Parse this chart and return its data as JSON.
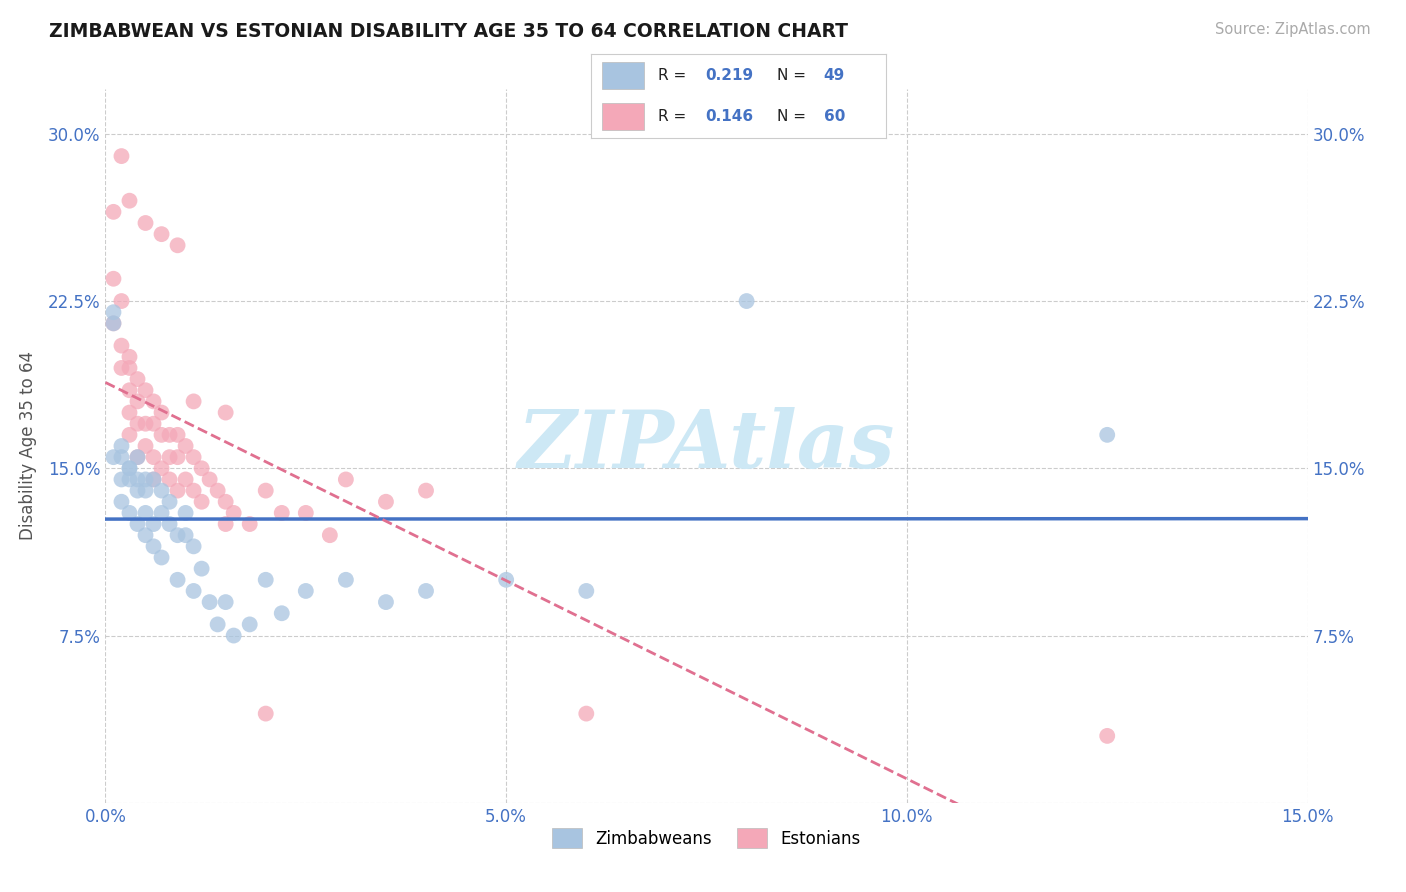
{
  "title": "ZIMBABWEAN VS ESTONIAN DISABILITY AGE 35 TO 64 CORRELATION CHART",
  "source_text": "Source: ZipAtlas.com",
  "xlabel": "",
  "ylabel": "Disability Age 35 to 64",
  "xlim": [
    0.0,
    0.15
  ],
  "ylim": [
    0.0,
    0.32
  ],
  "x_ticks": [
    0.0,
    0.05,
    0.1,
    0.15
  ],
  "x_tick_labels": [
    "0.0%",
    "5.0%",
    "10.0%",
    "15.0%"
  ],
  "y_ticks": [
    0.0,
    0.075,
    0.15,
    0.225,
    0.3
  ],
  "y_tick_labels": [
    "",
    "7.5%",
    "15.0%",
    "22.5%",
    "30.0%"
  ],
  "zim_R": 0.219,
  "zim_N": 49,
  "est_R": 0.146,
  "est_N": 60,
  "zim_color": "#a8c4e0",
  "est_color": "#f4a8b8",
  "zim_line_color": "#4472c4",
  "est_line_color": "#e07090",
  "watermark_color": "#cde8f5",
  "background_color": "#ffffff",
  "grid_color": "#cccccc",
  "zim_x": [
    0.001,
    0.001,
    0.001,
    0.002,
    0.002,
    0.002,
    0.002,
    0.003,
    0.003,
    0.003,
    0.003,
    0.004,
    0.004,
    0.004,
    0.004,
    0.005,
    0.005,
    0.005,
    0.005,
    0.006,
    0.006,
    0.006,
    0.007,
    0.007,
    0.007,
    0.008,
    0.008,
    0.009,
    0.009,
    0.01,
    0.01,
    0.011,
    0.011,
    0.012,
    0.013,
    0.014,
    0.015,
    0.016,
    0.018,
    0.02,
    0.022,
    0.025,
    0.03,
    0.035,
    0.04,
    0.05,
    0.06,
    0.08,
    0.125
  ],
  "zim_y": [
    0.215,
    0.22,
    0.155,
    0.155,
    0.16,
    0.145,
    0.135,
    0.15,
    0.15,
    0.145,
    0.13,
    0.155,
    0.145,
    0.14,
    0.125,
    0.145,
    0.14,
    0.13,
    0.12,
    0.145,
    0.125,
    0.115,
    0.14,
    0.13,
    0.11,
    0.135,
    0.125,
    0.12,
    0.1,
    0.13,
    0.12,
    0.115,
    0.095,
    0.105,
    0.09,
    0.08,
    0.09,
    0.075,
    0.08,
    0.1,
    0.085,
    0.095,
    0.1,
    0.09,
    0.095,
    0.1,
    0.095,
    0.225,
    0.165
  ],
  "est_x": [
    0.001,
    0.001,
    0.001,
    0.002,
    0.002,
    0.002,
    0.003,
    0.003,
    0.003,
    0.003,
    0.003,
    0.004,
    0.004,
    0.004,
    0.004,
    0.005,
    0.005,
    0.005,
    0.006,
    0.006,
    0.006,
    0.006,
    0.007,
    0.007,
    0.007,
    0.008,
    0.008,
    0.008,
    0.009,
    0.009,
    0.009,
    0.01,
    0.01,
    0.011,
    0.011,
    0.012,
    0.012,
    0.013,
    0.014,
    0.015,
    0.015,
    0.016,
    0.018,
    0.02,
    0.022,
    0.025,
    0.028,
    0.03,
    0.035,
    0.04,
    0.002,
    0.003,
    0.005,
    0.007,
    0.009,
    0.011,
    0.015,
    0.02,
    0.06,
    0.125
  ],
  "est_y": [
    0.265,
    0.235,
    0.215,
    0.225,
    0.205,
    0.195,
    0.2,
    0.195,
    0.185,
    0.175,
    0.165,
    0.19,
    0.18,
    0.17,
    0.155,
    0.185,
    0.17,
    0.16,
    0.18,
    0.17,
    0.155,
    0.145,
    0.175,
    0.165,
    0.15,
    0.165,
    0.155,
    0.145,
    0.165,
    0.155,
    0.14,
    0.16,
    0.145,
    0.155,
    0.14,
    0.15,
    0.135,
    0.145,
    0.14,
    0.135,
    0.125,
    0.13,
    0.125,
    0.14,
    0.13,
    0.13,
    0.12,
    0.145,
    0.135,
    0.14,
    0.29,
    0.27,
    0.26,
    0.255,
    0.25,
    0.18,
    0.175,
    0.04,
    0.04,
    0.03
  ]
}
